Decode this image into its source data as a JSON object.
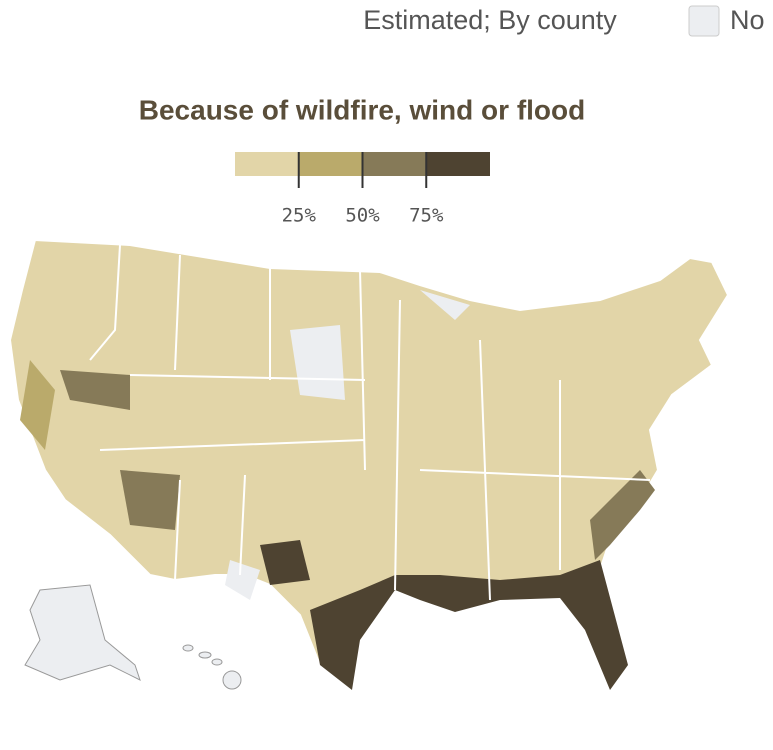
{
  "header": {
    "note": "Estimated; By county",
    "no_data_label": "No"
  },
  "legend": {
    "title": "Because of wildfire, wind or flood",
    "range": [
      0,
      100
    ],
    "colors": [
      "#e2d5a8",
      "#baaa6b",
      "#867a58",
      "#4e4331"
    ],
    "ticks": [
      {
        "value": 25,
        "label": "25%"
      },
      {
        "value": 50,
        "label": "50%"
      },
      {
        "value": 75,
        "label": "75%"
      }
    ]
  }
}
